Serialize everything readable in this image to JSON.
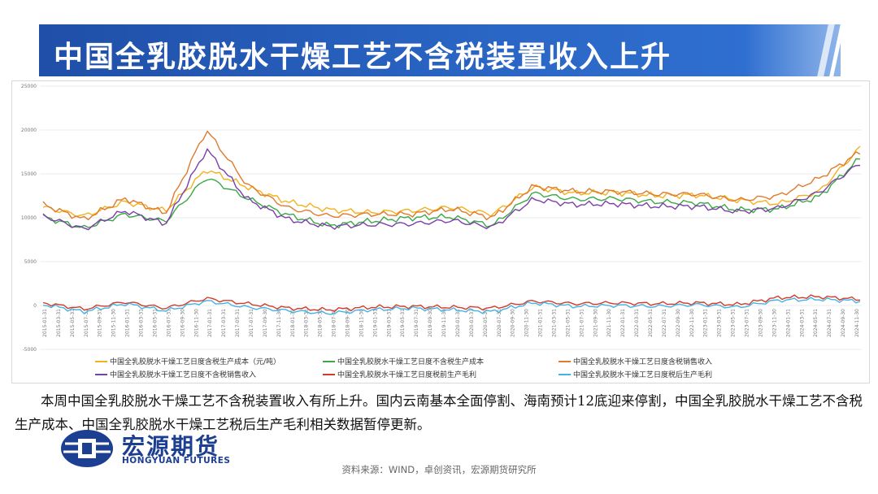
{
  "title": "中国全乳胶脱水干燥工艺不含税装置收入上升",
  "description": "本周中国全乳胶脱水干燥工艺不含税装置收入有所上升。国内云南基本全面停割、海南预计12底迎来停割，中国全乳胶脱水干燥工艺不含税生产成本、中国全乳胶脱水干燥工艺税后生产毛利相关数据暂停更新。",
  "source": "资料来源：WIND，卓创资讯，宏源期货研究所",
  "logo": {
    "cn": "宏源期货",
    "en": "HONGYUAN FUTURES",
    "color": "#1c3f92"
  },
  "chart_data": {
    "type": "line",
    "ylim": [
      -5000,
      25000
    ],
    "yticks": [
      "25000",
      "20000",
      "15000",
      "10000",
      "5000",
      "0",
      "-5000"
    ],
    "grid": "horizontal",
    "legend_position": "bottom",
    "x": [
      "2015-01-31",
      "2015-07-31",
      "2016-01-31",
      "2016-07-31",
      "2017-01-31",
      "2017-07-31",
      "2018-01-31",
      "2018-07-31",
      "2019-01-31",
      "2019-07-31",
      "2020-01-31",
      "2020-07-31",
      "2021-01-31",
      "2021-07-31",
      "2022-01-31",
      "2022-07-31",
      "2023-01-31",
      "2023-07-31",
      "2024-01-31",
      "2024-07-31",
      "2024-11-30"
    ],
    "xtick_labels": [
      "2015-01-31",
      "2015-03-31",
      "2015-05-31",
      "2015-07-31",
      "2015-09-31",
      "2015-11-30",
      "2016-01-31",
      "2016-03-31",
      "2016-05-31",
      "2016-07-31",
      "2016-09-30",
      "2016-11-30",
      "2017-01-31",
      "2017-03-31",
      "2017-05-31",
      "2017-07-31",
      "2017-09-30",
      "2017-11-30",
      "2018-01-31",
      "2018-03-31",
      "2018-05-31",
      "2018-07-31",
      "2018-09-30",
      "2018-11-30",
      "2019-01-31",
      "2019-03-31",
      "2019-05-31",
      "2019-07-31",
      "2019-09-30",
      "2019-11-30",
      "2020-01-31",
      "2020-03-31",
      "2020-05-31",
      "2020-07-31",
      "2020-09-30",
      "2020-11-30",
      "2021-01-31",
      "2021-03-31",
      "2021-05-31",
      "2021-07-31",
      "2021-09-30",
      "2021-11-30",
      "2022-01-31",
      "2022-03-31",
      "2022-05-31",
      "2022-07-31",
      "2022-09-30",
      "2022-11-30",
      "2023-01-31",
      "2023-03-31",
      "2023-05-31",
      "2023-07-31",
      "2023-09-30",
      "2023-11-30",
      "2024-01-31",
      "2024-03-31",
      "2024-05-31",
      "2024-07-31",
      "2024-09-30",
      "2024-11-30"
    ],
    "series": [
      {
        "name": "中国全乳胶脱水干燥工艺日度含税生产成本（元/吨）",
        "color": "#f2b21c",
        "values": [
          11200,
          10200,
          11800,
          10800,
          15500,
          13500,
          11800,
          10900,
          10600,
          10800,
          11200,
          10400,
          13500,
          12800,
          12900,
          12500,
          12600,
          12000,
          11600,
          13000,
          18000
        ]
      },
      {
        "name": "中国全乳胶脱水干燥工艺日度不含税生产成本",
        "color": "#3aa845",
        "values": [
          10100,
          8800,
          10400,
          9600,
          14600,
          12200,
          10300,
          9100,
          9600,
          10000,
          10100,
          9100,
          12800,
          12100,
          12200,
          11800,
          11700,
          10900,
          11000,
          12400,
          16800
        ]
      },
      {
        "name": "中国全乳胶脱水干燥工艺日度含税销售收入",
        "color": "#e07a2e",
        "values": [
          11500,
          9800,
          12200,
          10500,
          20000,
          13700,
          11100,
          10200,
          10400,
          10400,
          11000,
          10000,
          13600,
          13000,
          13000,
          12700,
          12700,
          12000,
          12500,
          14500,
          17500
        ]
      },
      {
        "name": "中国全乳胶脱水干燥工艺日度不含税销售收入",
        "color": "#7b3fa8",
        "values": [
          10200,
          8700,
          10800,
          9300,
          17800,
          12100,
          9800,
          9000,
          9200,
          9300,
          9700,
          8900,
          12100,
          11500,
          11600,
          11300,
          11300,
          10700,
          11100,
          12900,
          16200
        ]
      },
      {
        "name": "中国全乳胶脱水干燥工艺日度税前生产毛利",
        "color": "#d23b2a",
        "values": [
          300,
          -400,
          400,
          -300,
          800,
          200,
          -300,
          -500,
          -200,
          -100,
          -200,
          -300,
          500,
          200,
          300,
          200,
          300,
          100,
          900,
          1000,
          700
        ]
      },
      {
        "name": "中国全乳胶脱水干燥工艺日度税后生产毛利",
        "color": "#43b3e6",
        "values": [
          100,
          -700,
          200,
          -600,
          500,
          -200,
          -600,
          -900,
          -500,
          -300,
          -500,
          -700,
          300,
          -100,
          0,
          -100,
          100,
          -200,
          600,
          700,
          500
        ]
      }
    ]
  }
}
